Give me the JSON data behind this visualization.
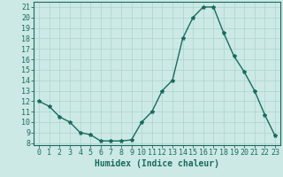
{
  "xlabel": "Humidex (Indice chaleur)",
  "ylabel": "",
  "x_values": [
    0,
    1,
    2,
    3,
    4,
    5,
    6,
    7,
    8,
    9,
    10,
    11,
    12,
    13,
    14,
    15,
    16,
    17,
    18,
    19,
    20,
    21,
    22,
    23
  ],
  "y_values": [
    12,
    11.5,
    10.5,
    10,
    9,
    8.8,
    8.2,
    8.2,
    8.2,
    8.3,
    10,
    11,
    13,
    14,
    18,
    20,
    21,
    21,
    18.5,
    16.3,
    14.8,
    13,
    10.7,
    8.7
  ],
  "ylim": [
    7.8,
    21.5
  ],
  "xlim": [
    -0.5,
    23.5
  ],
  "yticks": [
    8,
    9,
    10,
    11,
    12,
    13,
    14,
    15,
    16,
    17,
    18,
    19,
    20,
    21
  ],
  "xticks": [
    0,
    1,
    2,
    3,
    4,
    5,
    6,
    7,
    8,
    9,
    10,
    11,
    12,
    13,
    14,
    15,
    16,
    17,
    18,
    19,
    20,
    21,
    22,
    23
  ],
  "line_color": "#1a6b5e",
  "marker": "*",
  "bg_color": "#cce9e5",
  "grid_color": "#aad4cf",
  "tick_label_color": "#1a6b5e",
  "axis_color": "#1a6b5e",
  "xlabel_fontsize": 7,
  "tick_fontsize": 6,
  "linewidth": 1.0,
  "markersize": 3
}
